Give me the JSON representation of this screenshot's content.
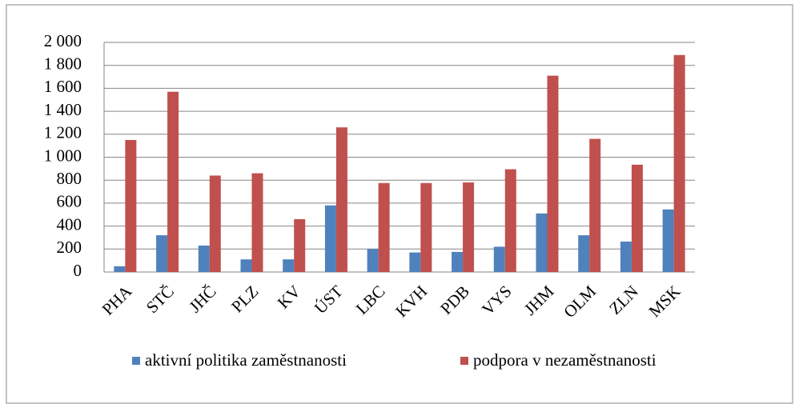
{
  "chart_data": {
    "type": "bar",
    "categories": [
      "PHA",
      "STČ",
      "JHČ",
      "PLZ",
      "KV",
      "ÚST",
      "LBC",
      "KVH",
      "PDB",
      "VYS",
      "JHM",
      "OLM",
      "ZLN",
      "MSK"
    ],
    "series": [
      {
        "name": "aktivní politika zaměstnanosti",
        "color": "#4f81bd",
        "values": [
          50,
          320,
          230,
          110,
          110,
          580,
          200,
          170,
          175,
          220,
          510,
          320,
          265,
          545
        ]
      },
      {
        "name": "podpora v nezaměstnanosti",
        "color": "#c0504d",
        "values": [
          1150,
          1570,
          840,
          860,
          460,
          1260,
          775,
          775,
          780,
          895,
          1710,
          1160,
          935,
          1890
        ]
      }
    ],
    "ylim": [
      0,
      2000
    ],
    "yticks": [
      0,
      200,
      400,
      600,
      800,
      {
        "value": 1000,
        "label": "1 000"
      },
      {
        "value": 1200,
        "label": "1 200"
      },
      {
        "value": 1400,
        "label": "1 400"
      },
      {
        "value": 1600,
        "label": "1 600"
      },
      {
        "value": 1800,
        "label": "1 800"
      },
      {
        "value": 2000,
        "label": "2 000"
      }
    ],
    "grid": true,
    "legend": "bottom"
  }
}
